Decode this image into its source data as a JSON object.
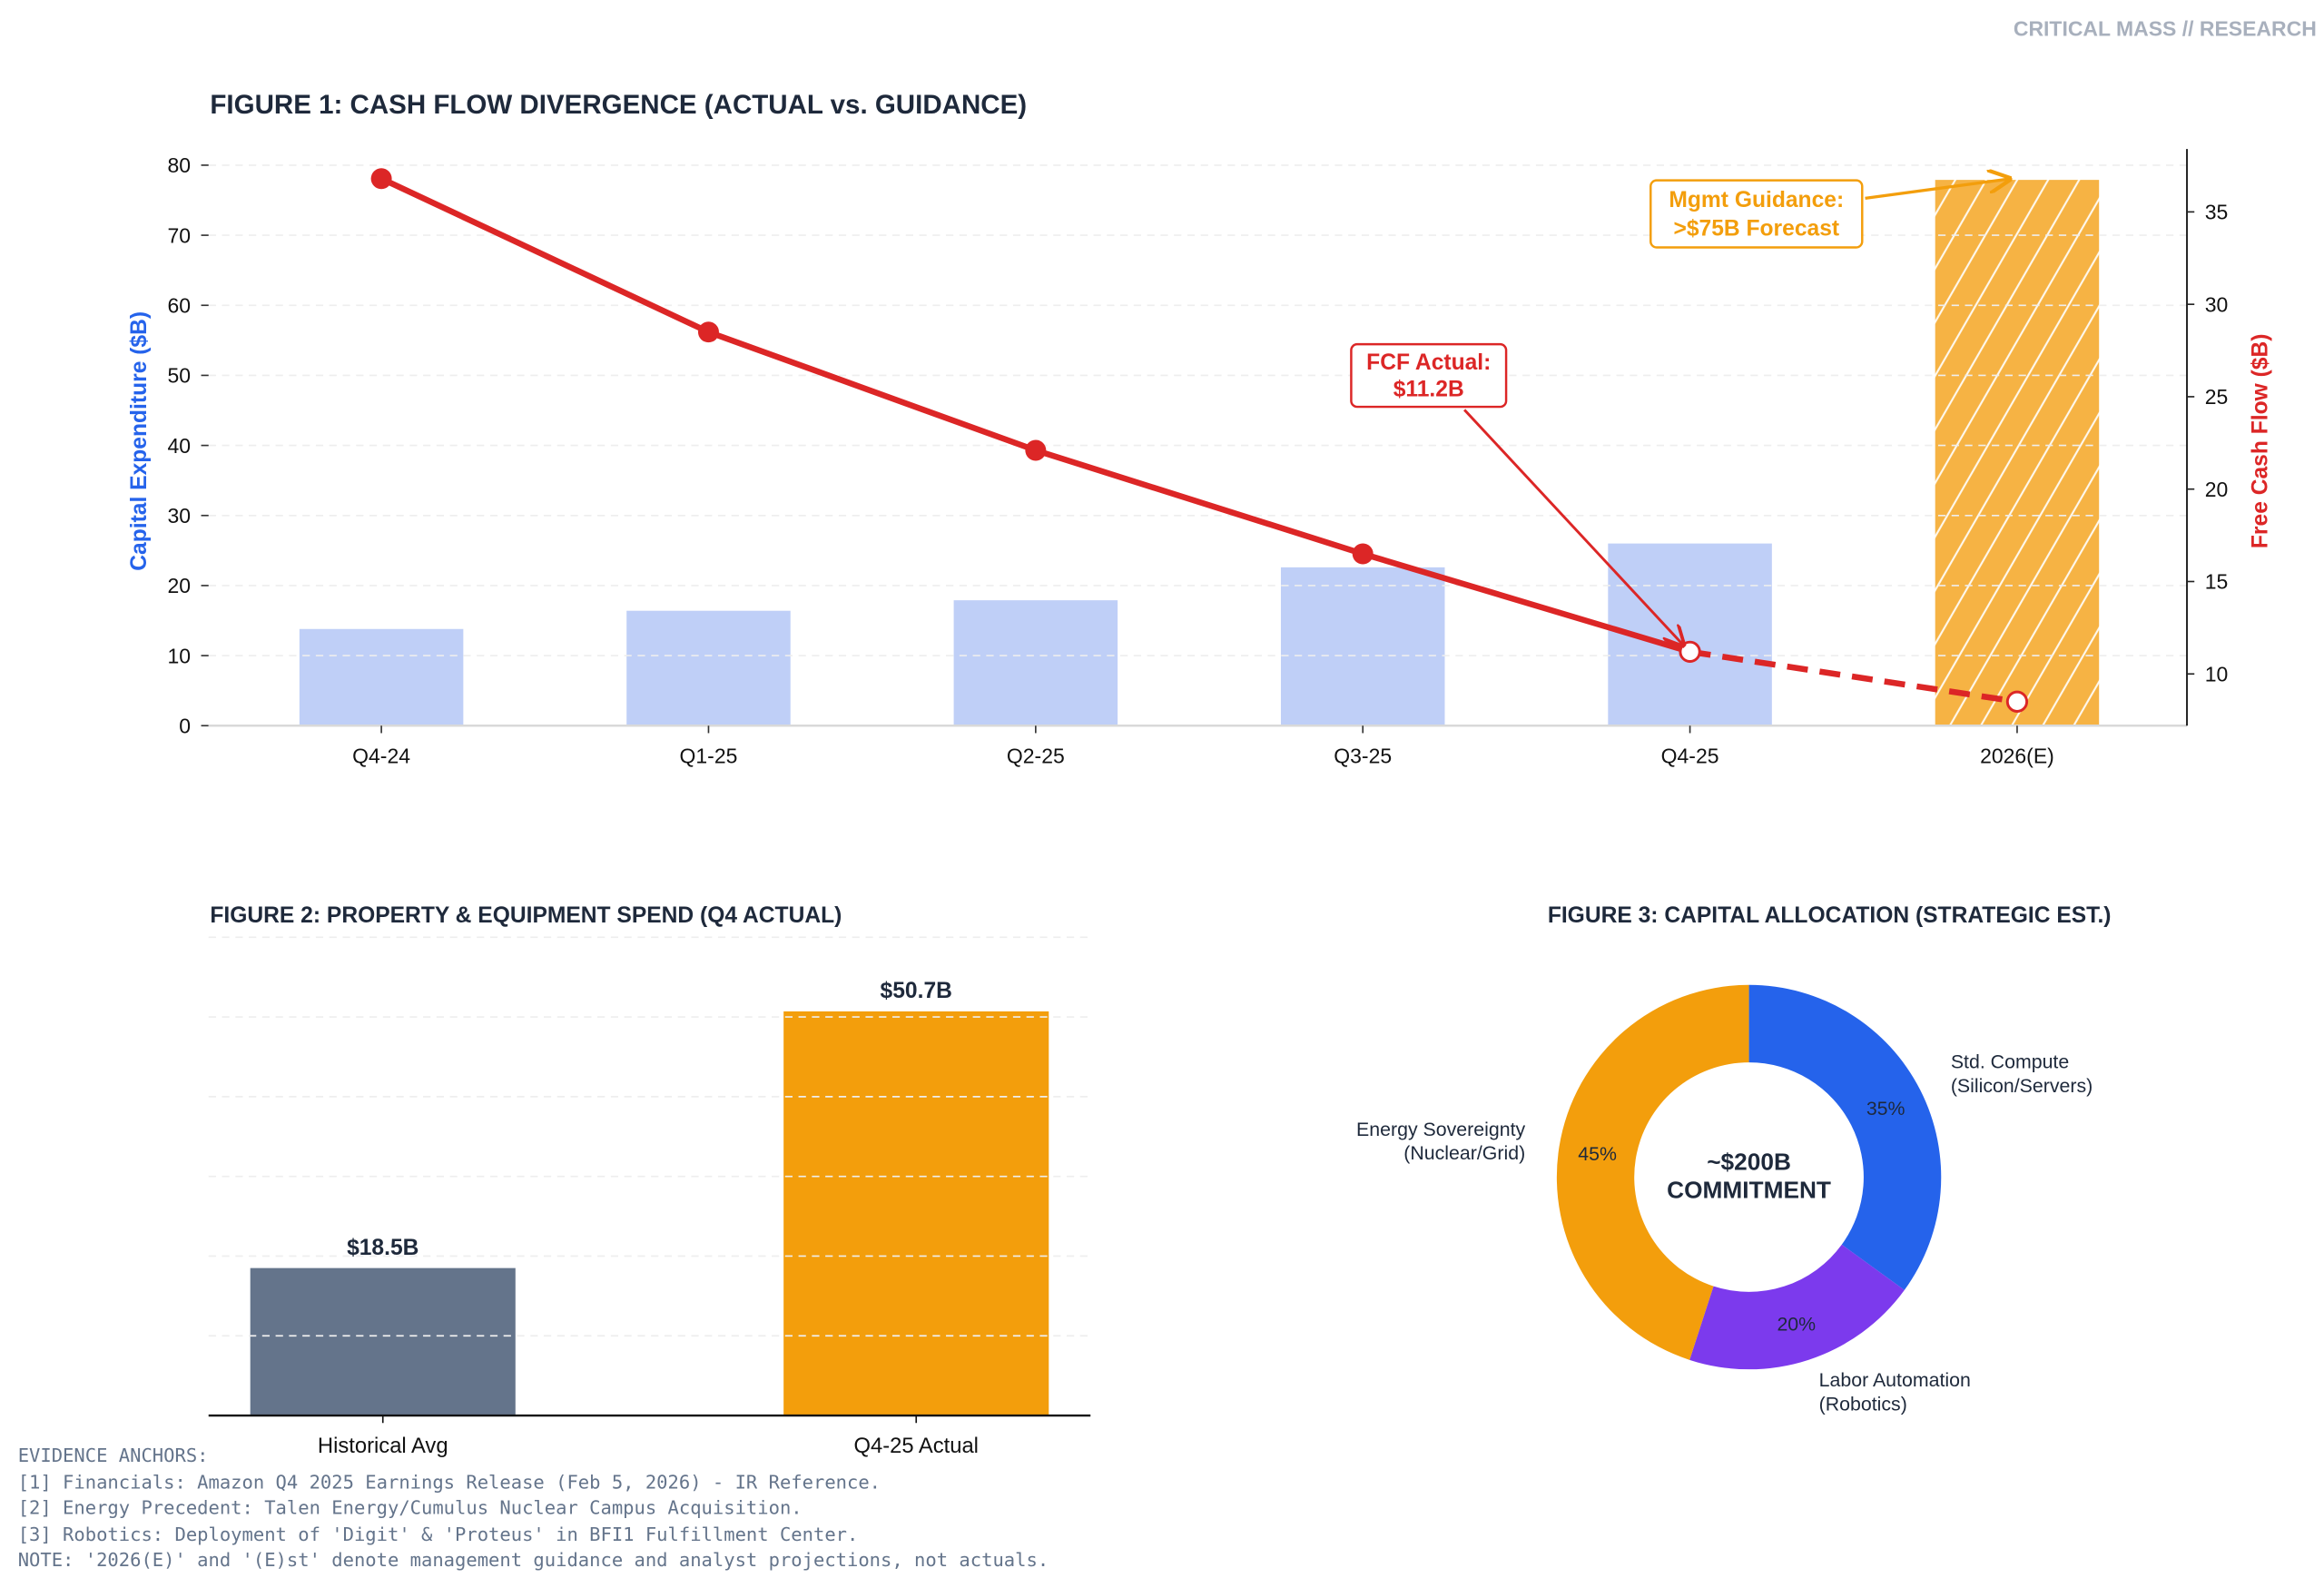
{
  "watermark": "CRITICAL MASS // RESEARCH",
  "colors": {
    "capex_bar": "#bfcff7",
    "guidance_bar": "#f5a623",
    "fcf_line": "#dc2626",
    "axis_blue": "#2563eb",
    "historical": "#64748b",
    "actual": "#f39e0c",
    "compute": "#2563eb",
    "labor": "#7c3aed",
    "energy": "#f39e0c",
    "text": "#1e293b"
  },
  "chart_data": [
    {
      "type": "bar+line",
      "title": "FIGURE 1: CASH FLOW DIVERGENCE (ACTUAL vs. GUIDANCE)",
      "categories": [
        "Q4-24",
        "Q1-25",
        "Q2-25",
        "Q3-25",
        "Q4-25",
        "2026(E)"
      ],
      "ylabel": "Capital Expenditure ($B)",
      "y2label": "Free Cash Flow ($B)",
      "ylim": [
        0,
        82.3
      ],
      "y2lim": [
        7.2,
        38.4
      ],
      "yticks": [
        0,
        10,
        20,
        30,
        40,
        50,
        60,
        70,
        80
      ],
      "y2ticks": [
        10,
        15,
        20,
        25,
        30,
        35
      ],
      "grid": true,
      "series": [
        {
          "kind": "bar",
          "axis": "left",
          "values": [
            13.8,
            16.4,
            17.9,
            22.6,
            26.0,
            77.9
          ],
          "hatched_last": true
        },
        {
          "kind": "line",
          "axis": "right",
          "values": [
            36.8,
            28.5,
            22.1,
            16.5,
            11.2,
            8.5
          ],
          "dashed_from_index": 4
        }
      ],
      "annotations": [
        {
          "text_lines": [
            "FCF Actual:",
            "$11.2B"
          ],
          "target_category": "Q4-25",
          "color": "#dc2626"
        },
        {
          "text_lines": [
            "Mgmt Guidance:",
            ">$75B Forecast"
          ],
          "target_category": "2026(E)",
          "color": "#f39e0c"
        }
      ]
    },
    {
      "type": "bar",
      "title": "FIGURE 2: PROPERTY & EQUIPMENT SPEND (Q4 ACTUAL)",
      "categories": [
        "Historical Avg",
        "Q4-25 Actual"
      ],
      "values": [
        18.5,
        50.7
      ],
      "data_labels": [
        "$18.5B",
        "$50.7B"
      ],
      "ylim": [
        0,
        60
      ],
      "grid": true,
      "y_axis_visible": false
    },
    {
      "type": "pie",
      "donut": true,
      "title": "FIGURE 3: CAPITAL ALLOCATION (STRATEGIC EST.)",
      "center_text": [
        "~$200B",
        "COMMITMENT"
      ],
      "slices": [
        {
          "label_lines": [
            "Std. Compute",
            "(Silicon/Servers)"
          ],
          "value": 35,
          "pct_label": "35%"
        },
        {
          "label_lines": [
            "Labor Automation",
            "(Robotics)"
          ],
          "value": 20,
          "pct_label": "20%"
        },
        {
          "label_lines": [
            "Energy Sovereignty",
            "(Nuclear/Grid)"
          ],
          "value": 45,
          "pct_label": "45%"
        }
      ]
    }
  ],
  "footer": {
    "lines": [
      "EVIDENCE ANCHORS:",
      "[1] Financials: Amazon Q4 2025 Earnings Release (Feb 5, 2026) - IR Reference.",
      "[2] Energy Precedent: Talen Energy/Cumulus Nuclear Campus Acquisition.",
      "[3] Robotics: Deployment of 'Digit' & 'Proteus' in BFI1 Fulfillment Center.",
      "NOTE: '2026(E)' and '(E)st' denote management guidance and analyst projections, not actuals."
    ]
  }
}
